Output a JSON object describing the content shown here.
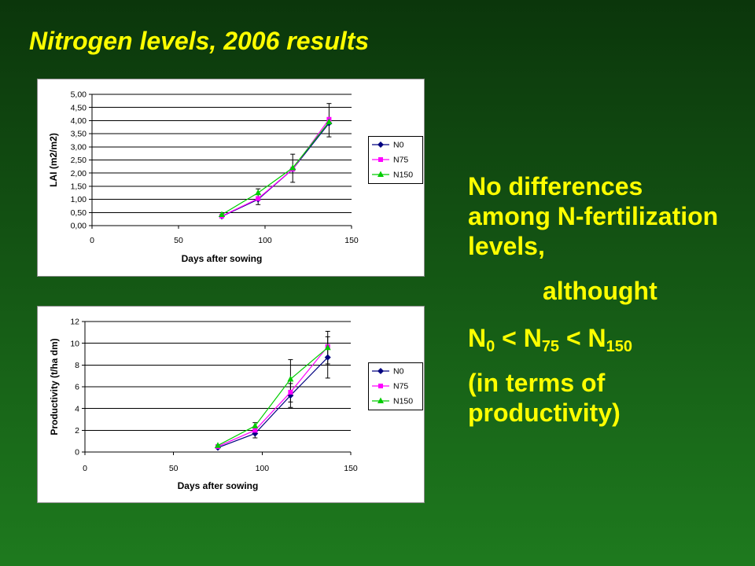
{
  "slide": {
    "title": "Nitrogen levels, 2006 results",
    "colors": {
      "background_top": "#0b360b",
      "background_bottom": "#1e7a1e",
      "text": "#ffff00",
      "chart_background": "#ffffff"
    },
    "findings": {
      "line_1": "No differences",
      "line_2": "among N-fertilization",
      "line_3": "levels,",
      "line_4": "althought",
      "comparison": {
        "n0": {
          "base": "N",
          "sub": "0"
        },
        "op_1": "<",
        "n75": {
          "base": "N",
          "sub": "75"
        },
        "op_2": "<",
        "n150": {
          "base": "N",
          "sub": "150"
        }
      },
      "line_6": "(in terms of",
      "line_7": "productivity)"
    }
  },
  "chart_data": [
    {
      "type": "line",
      "xlabel": "Days after sowing",
      "ylabel": "LAI (m2/m2)",
      "xlim": [
        0,
        150
      ],
      "ylim": [
        0,
        5
      ],
      "xticks": [
        "0",
        "50",
        "100",
        "150"
      ],
      "yticks": [
        "0,00",
        "0,50",
        "1,00",
        "1,50",
        "2,00",
        "2,50",
        "3,00",
        "3,50",
        "4,00",
        "4,50",
        "5,00"
      ],
      "grid": "horizontal",
      "legend_position": "right",
      "x": [
        75,
        96,
        116,
        137
      ],
      "series": [
        {
          "name": "N0",
          "values": [
            0.35,
            1.0,
            2.15,
            3.9
          ],
          "color": "#000080",
          "marker": "diamond"
        },
        {
          "name": "N75",
          "values": [
            0.36,
            1.03,
            2.15,
            4.05
          ],
          "color": "#ff00ff",
          "marker": "square"
        },
        {
          "name": "N150",
          "values": [
            0.42,
            1.25,
            2.2,
            3.95
          ],
          "color": "#00cc00",
          "marker": "triangle"
        }
      ],
      "error_bars": [
        {
          "x": 96,
          "low": 0.8,
          "high": 1.4
        },
        {
          "x": 116,
          "low": 1.65,
          "high": 2.72
        },
        {
          "x": 137,
          "low": 3.38,
          "high": 4.65
        }
      ]
    },
    {
      "type": "line",
      "xlabel": "Days after sowing",
      "ylabel": "Productivity (t/ha dm)",
      "xlim": [
        0,
        150
      ],
      "ylim": [
        0,
        12
      ],
      "xticks": [
        "0",
        "50",
        "100",
        "150"
      ],
      "yticks": [
        "0",
        "2",
        "4",
        "6",
        "8",
        "10",
        "12"
      ],
      "grid": "horizontal",
      "legend_position": "right",
      "x": [
        75,
        96,
        116,
        137
      ],
      "series": [
        {
          "name": "N0",
          "values": [
            0.4,
            1.7,
            5.2,
            8.7
          ],
          "color": "#000080",
          "marker": "diamond"
        },
        {
          "name": "N75",
          "values": [
            0.5,
            2.0,
            5.5,
            9.7
          ],
          "color": "#ff00ff",
          "marker": "square"
        },
        {
          "name": "N150",
          "values": [
            0.6,
            2.4,
            6.7,
            9.6
          ],
          "color": "#00cc00",
          "marker": "triangle"
        }
      ],
      "error_bars": [
        {
          "x": 96,
          "low": 1.3,
          "high": 2.7
        },
        {
          "x": 116,
          "low": 4.1,
          "high": 8.5
        },
        {
          "x": 116,
          "low": 4.6,
          "high": 6.3
        },
        {
          "x": 137,
          "low": 6.8,
          "high": 11.1
        },
        {
          "x": 137,
          "low": 8.1,
          "high": 10.6
        }
      ]
    }
  ]
}
